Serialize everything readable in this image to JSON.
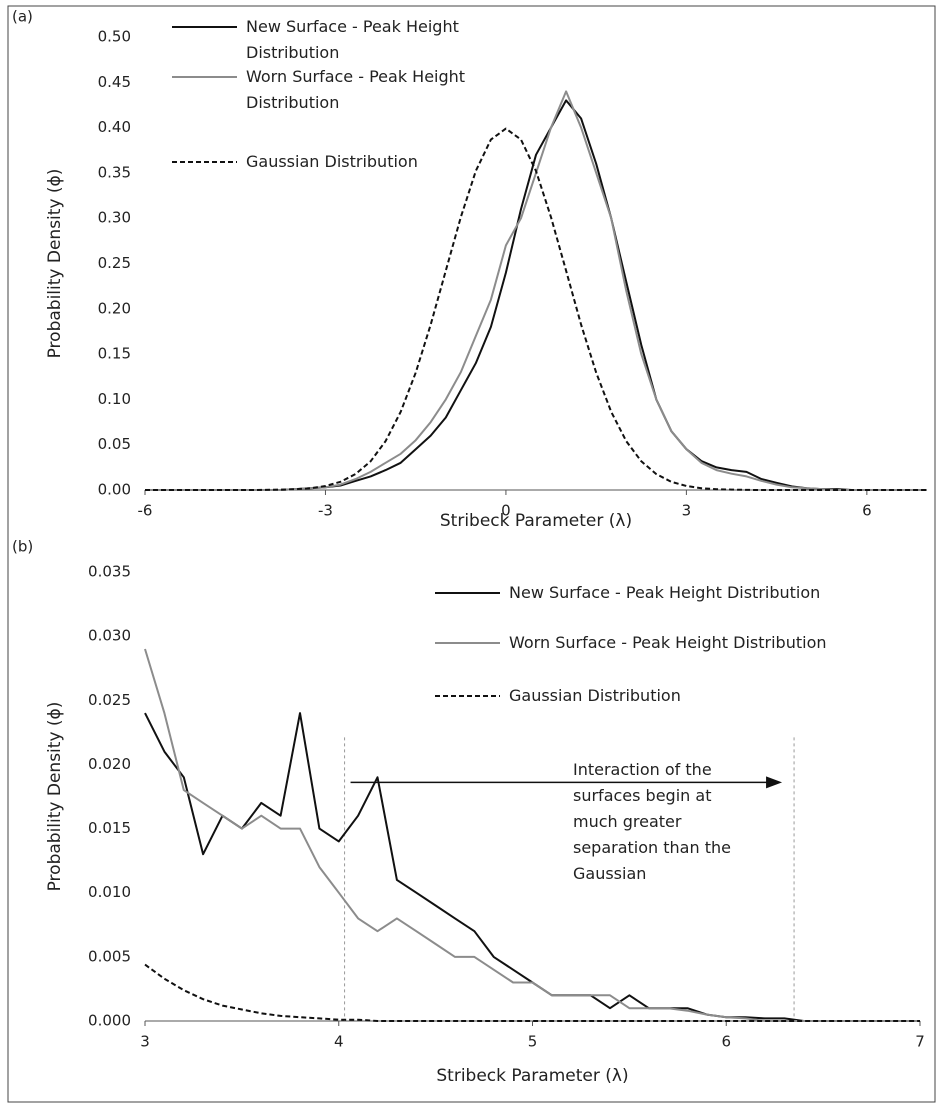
{
  "chart_data": [
    {
      "type": "line",
      "panel_label": "(a)",
      "x_label": "Stribeck Parameter (λ)",
      "y_label": "Probability Density (ϕ)",
      "x": [
        -6,
        -5.75,
        -5.5,
        -5.25,
        -5,
        -4.75,
        -4.5,
        -4.25,
        -4,
        -3.75,
        -3.5,
        -3.25,
        -3,
        -2.75,
        -2.5,
        -2.25,
        -2,
        -1.75,
        -1.5,
        -1.25,
        -1,
        -0.75,
        -0.5,
        -0.25,
        0,
        0.25,
        0.5,
        0.75,
        1,
        1.25,
        1.5,
        1.75,
        2,
        2.25,
        2.5,
        2.75,
        3,
        3.25,
        3.5,
        3.75,
        4,
        4.25,
        4.5,
        4.75,
        5,
        5.25,
        5.5,
        5.75,
        6,
        6.25,
        6.5,
        6.75,
        7
      ],
      "series": [
        {
          "name": "New Surface - Peak Height Distribution",
          "color": "#111111",
          "dash": false,
          "values": [
            0,
            0,
            0,
            0,
            0,
            0,
            0,
            0,
            0,
            0,
            0.001,
            0.002,
            0.003,
            0.005,
            0.01,
            0.015,
            0.022,
            0.03,
            0.045,
            0.06,
            0.08,
            0.11,
            0.14,
            0.18,
            0.24,
            0.31,
            0.37,
            0.4,
            0.43,
            0.41,
            0.36,
            0.3,
            0.23,
            0.16,
            0.1,
            0.065,
            0.045,
            0.032,
            0.025,
            0.022,
            0.02,
            0.012,
            0.008,
            0.004,
            0.002,
            0.001,
            0.001,
            0,
            0,
            0,
            0,
            0,
            0
          ]
        },
        {
          "name": "Worn Surface - Peak Height Distribution",
          "color": "#8c8c8c",
          "dash": false,
          "values": [
            0,
            0,
            0,
            0,
            0,
            0,
            0,
            0,
            0,
            0,
            0.001,
            0.002,
            0.003,
            0.006,
            0.012,
            0.02,
            0.03,
            0.04,
            0.055,
            0.075,
            0.1,
            0.13,
            0.17,
            0.21,
            0.27,
            0.3,
            0.35,
            0.4,
            0.44,
            0.4,
            0.35,
            0.3,
            0.22,
            0.15,
            0.1,
            0.065,
            0.045,
            0.03,
            0.022,
            0.018,
            0.015,
            0.01,
            0.006,
            0.003,
            0.002,
            0.001,
            0,
            0,
            0,
            0,
            0,
            0,
            0
          ]
        },
        {
          "name": "Gaussian Distribution",
          "color": "#111111",
          "dash": true,
          "values": [
            0,
            0,
            0,
            0,
            0,
            0,
            0,
            0,
            0.0001,
            0.0004,
            0.0009,
            0.002,
            0.0044,
            0.0091,
            0.0175,
            0.0317,
            0.054,
            0.0863,
            0.1295,
            0.1826,
            0.242,
            0.3011,
            0.3521,
            0.3867,
            0.3989,
            0.3867,
            0.3521,
            0.3011,
            0.242,
            0.1826,
            0.1295,
            0.0863,
            0.054,
            0.0317,
            0.0175,
            0.0091,
            0.0044,
            0.002,
            0.0009,
            0.0004,
            0.0001,
            0,
            0,
            0,
            0,
            0,
            0,
            0,
            0,
            0,
            0,
            0,
            0
          ]
        }
      ],
      "xlim": [
        -6,
        7
      ],
      "xticks": [
        -6,
        -3,
        0,
        3,
        6
      ],
      "ylim": [
        0,
        0.5
      ],
      "yticks": [
        {
          "value": 0,
          "label": "0.00"
        },
        {
          "value": 0.05,
          "label": "0.05"
        },
        {
          "value": 0.1,
          "label": "0.10"
        },
        {
          "value": 0.15,
          "label": "0.15"
        },
        {
          "value": 0.2,
          "label": "0.20"
        },
        {
          "value": 0.25,
          "label": "0.25"
        },
        {
          "value": 0.3,
          "label": "0.30"
        },
        {
          "value": 0.35,
          "label": "0.35"
        },
        {
          "value": 0.4,
          "label": "0.40"
        },
        {
          "value": 0.45,
          "label": "0.45"
        },
        {
          "value": 0.5,
          "label": "0.50"
        }
      ]
    },
    {
      "type": "line",
      "panel_label": "(b)",
      "x_label": "Stribeck Parameter (λ)",
      "y_label": "Probability Density (ϕ)",
      "x": [
        3,
        3.1,
        3.2,
        3.3,
        3.4,
        3.5,
        3.6,
        3.7,
        3.8,
        3.9,
        4,
        4.1,
        4.2,
        4.3,
        4.4,
        4.5,
        4.6,
        4.7,
        4.8,
        4.9,
        5,
        5.1,
        5.2,
        5.3,
        5.4,
        5.5,
        5.6,
        5.7,
        5.8,
        5.9,
        6,
        6.1,
        6.2,
        6.3,
        6.4,
        6.5,
        6.6,
        6.7,
        6.8,
        6.9,
        7
      ],
      "series": [
        {
          "name": "New Surface - Peak Height Distribution",
          "color": "#111111",
          "dash": false,
          "values": [
            0.024,
            0.021,
            0.019,
            0.013,
            0.016,
            0.015,
            0.017,
            0.016,
            0.024,
            0.015,
            0.014,
            0.016,
            0.019,
            0.011,
            0.01,
            0.009,
            0.008,
            0.007,
            0.005,
            0.004,
            0.003,
            0.002,
            0.002,
            0.002,
            0.001,
            0.002,
            0.001,
            0.001,
            0.001,
            0.0005,
            0.0003,
            0.0003,
            0.0002,
            0.0002,
            0,
            0,
            0,
            0,
            0,
            0,
            0
          ]
        },
        {
          "name": "Worn Surface - Peak Height Distribution",
          "color": "#8c8c8c",
          "dash": false,
          "values": [
            0.029,
            0.024,
            0.018,
            0.017,
            0.016,
            0.015,
            0.016,
            0.015,
            0.015,
            0.012,
            0.01,
            0.008,
            0.007,
            0.008,
            0.007,
            0.006,
            0.005,
            0.005,
            0.004,
            0.003,
            0.003,
            0.002,
            0.002,
            0.002,
            0.002,
            0.001,
            0.001,
            0.001,
            0.0008,
            0.0005,
            0.0003,
            0.0002,
            0,
            0,
            0,
            0,
            0,
            0,
            0,
            0,
            0
          ]
        },
        {
          "name": "Gaussian Distribution",
          "color": "#111111",
          "dash": true,
          "values": [
            0.0044,
            0.0033,
            0.0024,
            0.0017,
            0.0012,
            0.0009,
            0.0006,
            0.0004,
            0.0003,
            0.0002,
            0.0001,
            0.0001,
            0,
            0,
            0,
            0,
            0,
            0,
            0,
            0,
            0,
            0,
            0,
            0,
            0,
            0,
            0,
            0,
            0,
            0,
            0,
            0,
            0,
            0,
            0,
            0,
            0,
            0,
            0,
            0,
            0
          ]
        }
      ],
      "xlim": [
        3,
        7
      ],
      "xticks": [
        3,
        4,
        5,
        6,
        7
      ],
      "ylim": [
        0,
        0.035
      ],
      "yticks": [
        {
          "value": 0,
          "label": "0.000"
        },
        {
          "value": 0.005,
          "label": "0.005"
        },
        {
          "value": 0.01,
          "label": "0.010"
        },
        {
          "value": 0.015,
          "label": "0.015"
        },
        {
          "value": 0.02,
          "label": "0.020"
        },
        {
          "value": 0.025,
          "label": "0.025"
        },
        {
          "value": 0.03,
          "label": "0.030"
        },
        {
          "value": 0.035,
          "label": "0.035"
        }
      ],
      "annotation": "Interaction of the surfaces begin at much greater separation than the Gaussian",
      "vlines": [
        4.03,
        6.35
      ],
      "arrow_y": 0.0186
    }
  ]
}
